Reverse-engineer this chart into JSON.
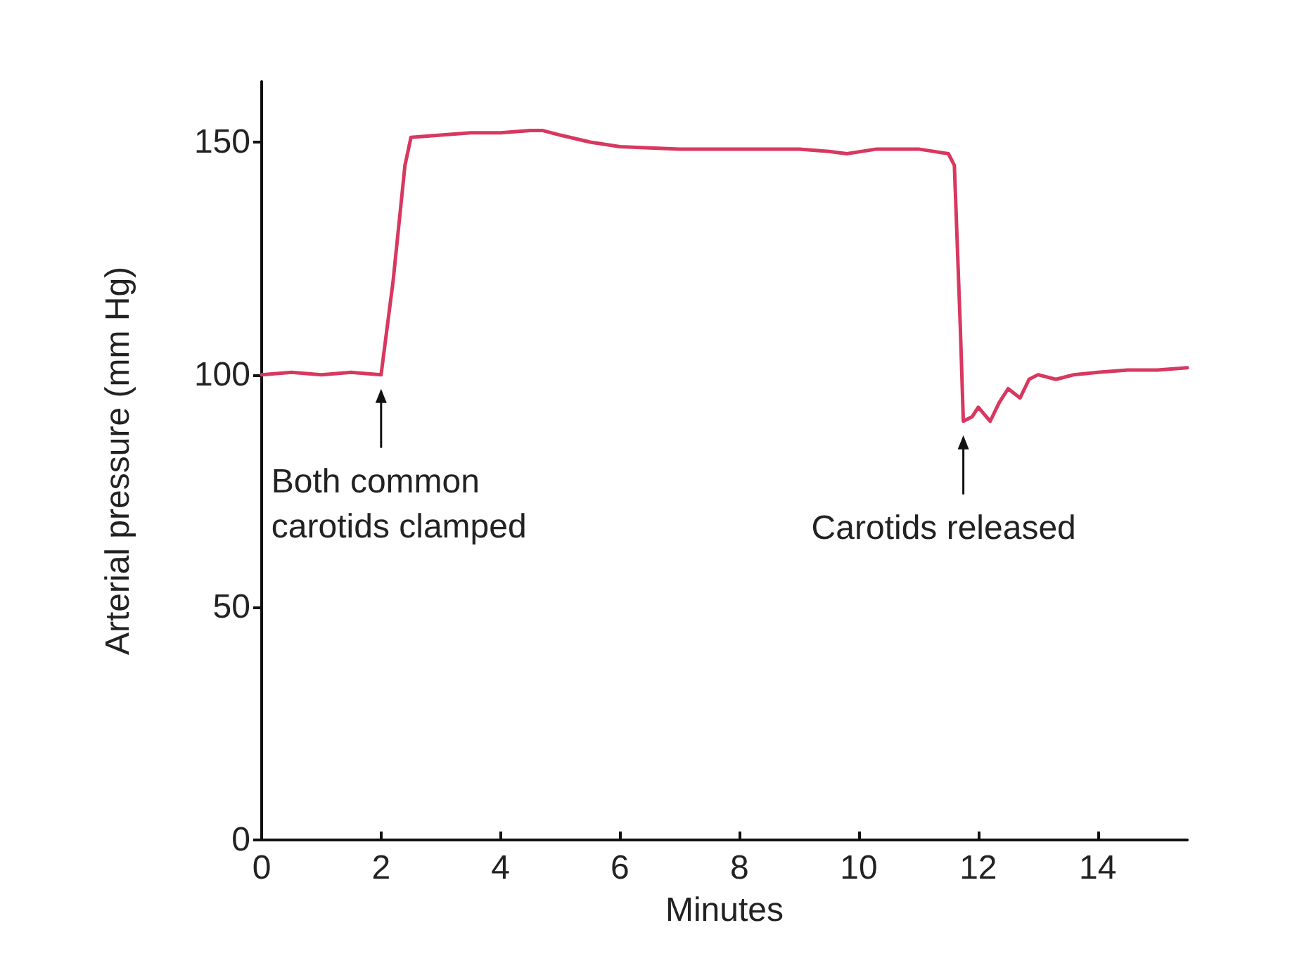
{
  "chart_data": {
    "type": "line",
    "xlabel": "Minutes",
    "ylabel": "Arterial pressure (mm Hg)",
    "xlim": [
      0,
      15.5
    ],
    "xticks": [
      0,
      2,
      4,
      6,
      8,
      10,
      12,
      14
    ],
    "ylim": [
      0,
      163
    ],
    "yticks": [
      0,
      50,
      100,
      150
    ],
    "marker": "none",
    "line_style": "solid",
    "series": [
      {
        "color": "#d8385f",
        "x": [
          0,
          0.5,
          1,
          1.5,
          2,
          2.2,
          2.4,
          2.5,
          3,
          3.5,
          4,
          4.5,
          4.7,
          5,
          5.5,
          6,
          7,
          8,
          9,
          9.5,
          9.8,
          10.3,
          11,
          11.5,
          11.6,
          11.7,
          11.75,
          11.9,
          12,
          12.2,
          12.35,
          12.5,
          12.7,
          12.85,
          13,
          13.3,
          13.6,
          14,
          14.5,
          15,
          15.5
        ],
        "values": [
          100,
          100.5,
          100,
          100.5,
          100,
          120,
          145,
          151,
          151.5,
          152,
          152,
          152.5,
          152.5,
          151.5,
          150,
          149,
          148.5,
          148.5,
          148.5,
          148,
          147.5,
          148.5,
          148.5,
          147.5,
          145,
          110,
          90,
          91,
          93,
          90,
          94,
          97,
          95,
          99,
          100,
          99,
          100,
          100.5,
          101,
          101,
          101.5
        ]
      }
    ],
    "annotations": [
      {
        "text": "Both common carotids clamped",
        "x": 2,
        "y": 100
      },
      {
        "text": "Carotids released",
        "x": 11.75,
        "y": 90
      }
    ]
  }
}
